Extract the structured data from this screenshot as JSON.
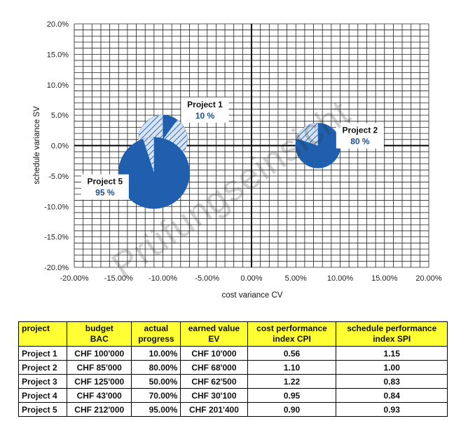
{
  "chart_data": {
    "type": "scatter",
    "xlabel": "cost variance CV",
    "ylabel": "schedule variance SV",
    "xlim": [
      -0.2,
      0.2
    ],
    "ylim": [
      -0.2,
      0.2
    ],
    "x_ticks": [
      "-20.00%",
      "-15.00%",
      "-10.00%",
      "-5.00%",
      "0.00%",
      "5.00%",
      "10.00%",
      "15.00%",
      "20.00%"
    ],
    "y_ticks": [
      "20.0%",
      "15.0%",
      "10.0%",
      "5.0%",
      "0.0%",
      "-5.0%",
      "-10.0%",
      "-15.0%",
      "-20.0%"
    ],
    "grid": true,
    "colors": {
      "filled": "#1f5fae",
      "hatched": "#c9d8ea",
      "hatch_line": "#2a6bb5"
    },
    "bubbles": [
      {
        "name": "Project 1",
        "percent_label": "10 %",
        "progress": 0.1,
        "cv": -0.1,
        "sv": 0.01,
        "budget": 100000
      },
      {
        "name": "Project 2",
        "percent_label": "80 %",
        "progress": 0.8,
        "cv": 0.075,
        "sv": 0.0,
        "budget": 85000
      },
      {
        "name": "Project 5",
        "percent_label": "95 %",
        "progress": 0.95,
        "cv": -0.11,
        "sv": -0.045,
        "budget": 212000
      }
    ]
  },
  "watermark": "Prüfungseinsicht",
  "table": {
    "headers": [
      [
        "project"
      ],
      [
        "budget",
        "BAC"
      ],
      [
        "actual",
        "progress"
      ],
      [
        "earned value",
        "EV"
      ],
      [
        "cost performance",
        "index CPI"
      ],
      [
        "schedule performance",
        "index SPI"
      ]
    ],
    "rows": [
      [
        "Project 1",
        "CHF 100'000",
        "10.00%",
        "CHF 10'000",
        "0.56",
        "1.15"
      ],
      [
        "Project 2",
        "CHF 85'000",
        "80.00%",
        "CHF 68'000",
        "1.10",
        "1.00"
      ],
      [
        "Project 3",
        "CHF 125'000",
        "50.00%",
        "CHF 62'500",
        "1.22",
        "0.83"
      ],
      [
        "Project 4",
        "CHF 43'000",
        "70.00%",
        "CHF 30'100",
        "0.95",
        "0.84"
      ],
      [
        "Project 5",
        "CHF 212'000",
        "95.00%",
        "CHF 201'400",
        "0.90",
        "0.93"
      ]
    ]
  }
}
